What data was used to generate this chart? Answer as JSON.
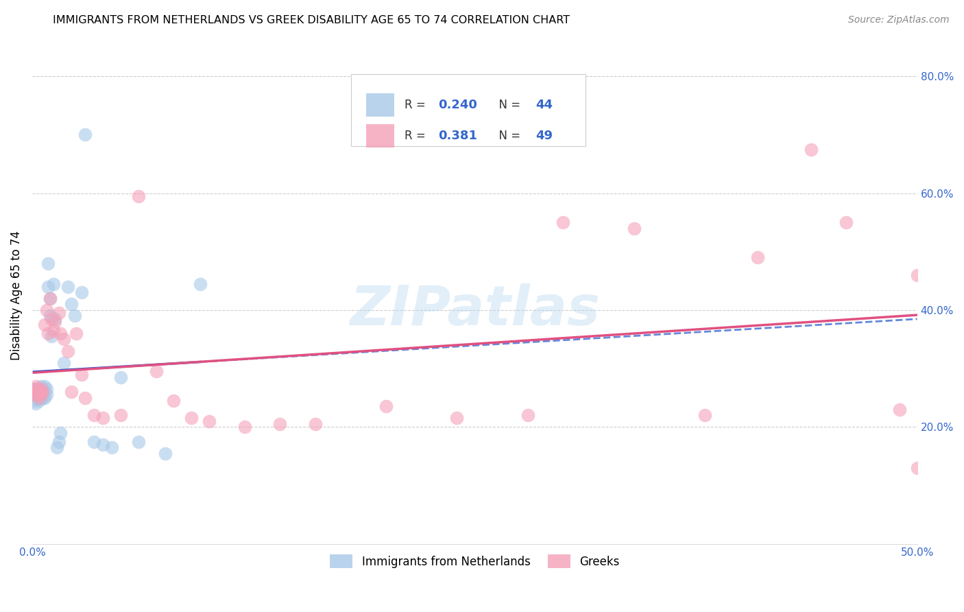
{
  "title": "IMMIGRANTS FROM NETHERLANDS VS GREEK DISABILITY AGE 65 TO 74 CORRELATION CHART",
  "source": "Source: ZipAtlas.com",
  "ylabel": "Disability Age 65 to 74",
  "xlim": [
    0.0,
    0.5
  ],
  "ylim": [
    0.0,
    0.85
  ],
  "xticks": [
    0.0,
    0.1,
    0.2,
    0.3,
    0.4,
    0.5
  ],
  "xticklabels": [
    "0.0%",
    "",
    "",
    "",
    "",
    "50.0%"
  ],
  "yticks_right": [
    0.2,
    0.4,
    0.6,
    0.8
  ],
  "ytick_labels_right": [
    "20.0%",
    "40.0%",
    "60.0%",
    "80.0%"
  ],
  "color_blue": "#a8c8e8",
  "color_pink": "#f4a0b8",
  "trendline_blue": "#2255cc",
  "trendline_pink": "#e05080",
  "watermark": "ZIPatlas",
  "netherlands_x": [
    0.001,
    0.001,
    0.002,
    0.002,
    0.002,
    0.003,
    0.003,
    0.003,
    0.004,
    0.004,
    0.004,
    0.005,
    0.005,
    0.005,
    0.006,
    0.006,
    0.007,
    0.007,
    0.007,
    0.008,
    0.008,
    0.009,
    0.009,
    0.01,
    0.01,
    0.011,
    0.012,
    0.013,
    0.014,
    0.015,
    0.016,
    0.018,
    0.02,
    0.022,
    0.024,
    0.028,
    0.03,
    0.035,
    0.04,
    0.045,
    0.05,
    0.06,
    0.075,
    0.095
  ],
  "netherlands_y": [
    0.265,
    0.245,
    0.26,
    0.255,
    0.24,
    0.25,
    0.265,
    0.255,
    0.25,
    0.255,
    0.245,
    0.27,
    0.26,
    0.25,
    0.265,
    0.25,
    0.27,
    0.26,
    0.25,
    0.265,
    0.255,
    0.48,
    0.44,
    0.42,
    0.39,
    0.355,
    0.445,
    0.385,
    0.165,
    0.175,
    0.19,
    0.31,
    0.44,
    0.41,
    0.39,
    0.43,
    0.7,
    0.175,
    0.17,
    0.165,
    0.285,
    0.175,
    0.155,
    0.445
  ],
  "greeks_x": [
    0.001,
    0.001,
    0.002,
    0.002,
    0.003,
    0.003,
    0.004,
    0.004,
    0.005,
    0.005,
    0.006,
    0.007,
    0.008,
    0.009,
    0.01,
    0.011,
    0.012,
    0.013,
    0.015,
    0.016,
    0.018,
    0.02,
    0.022,
    0.025,
    0.028,
    0.03,
    0.035,
    0.04,
    0.05,
    0.06,
    0.07,
    0.08,
    0.09,
    0.1,
    0.12,
    0.14,
    0.16,
    0.2,
    0.24,
    0.28,
    0.3,
    0.34,
    0.38,
    0.41,
    0.44,
    0.46,
    0.49,
    0.5,
    0.5
  ],
  "greeks_y": [
    0.265,
    0.255,
    0.27,
    0.26,
    0.265,
    0.255,
    0.26,
    0.25,
    0.265,
    0.255,
    0.26,
    0.375,
    0.4,
    0.36,
    0.42,
    0.385,
    0.365,
    0.38,
    0.395,
    0.36,
    0.35,
    0.33,
    0.26,
    0.36,
    0.29,
    0.25,
    0.22,
    0.215,
    0.22,
    0.595,
    0.295,
    0.245,
    0.215,
    0.21,
    0.2,
    0.205,
    0.205,
    0.235,
    0.215,
    0.22,
    0.55,
    0.54,
    0.22,
    0.49,
    0.675,
    0.55,
    0.23,
    0.13,
    0.46
  ]
}
